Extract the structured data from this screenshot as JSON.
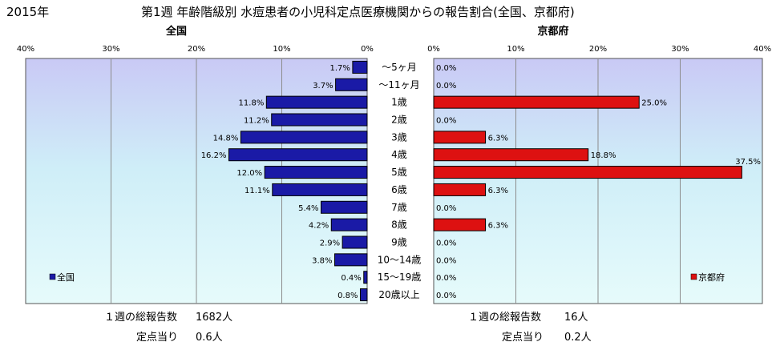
{
  "header": {
    "year": "2015年",
    "title": "第1週 年齢階級別 水痘患者の小児科定点医療機関からの報告割合(全国、京都府)"
  },
  "chart_data": [
    {
      "type": "bar",
      "orientation": "horizontal",
      "direction": "right-to-left",
      "title": "全国",
      "legend": "全国",
      "legend_position": "bottom-left",
      "color": "#1a1aa6",
      "xlim": [
        0,
        40
      ],
      "ticks": [
        "40%",
        "30%",
        "20%",
        "10%",
        "0%"
      ],
      "values": [
        1.7,
        3.7,
        11.8,
        11.2,
        14.8,
        16.2,
        12.0,
        11.1,
        5.4,
        4.2,
        2.9,
        3.8,
        0.4,
        0.8
      ],
      "labels": [
        "1.7%",
        "3.7%",
        "11.8%",
        "11.2%",
        "14.8%",
        "16.2%",
        "12.0%",
        "11.1%",
        "5.4%",
        "4.2%",
        "2.9%",
        "3.8%",
        "0.4%",
        "0.8%"
      ],
      "grid": true
    },
    {
      "type": "bar",
      "orientation": "horizontal",
      "direction": "left-to-right",
      "title": "京都府",
      "legend": "京都府",
      "legend_position": "bottom-right",
      "color": "#dd1111",
      "xlim": [
        0,
        40
      ],
      "ticks": [
        "0%",
        "10%",
        "20%",
        "30%",
        "40%"
      ],
      "values": [
        0.0,
        0.0,
        25.0,
        0.0,
        6.3,
        18.8,
        37.5,
        6.3,
        0.0,
        6.3,
        0.0,
        0.0,
        0.0,
        0.0
      ],
      "labels": [
        "0.0%",
        "0.0%",
        "25.0%",
        "0.0%",
        "6.3%",
        "18.8%",
        "37.5%",
        "6.3%",
        "0.0%",
        "6.3%",
        "0.0%",
        "0.0%",
        "0.0%",
        "0.0%"
      ],
      "grid": true
    }
  ],
  "categories": [
    "～5ヶ月",
    "～11ヶ月",
    "1歳",
    "2歳",
    "3歳",
    "4歳",
    "5歳",
    "6歳",
    "7歳",
    "8歳",
    "9歳",
    "10～14歳",
    "15～19歳",
    "20歳以上"
  ],
  "footer": {
    "national": {
      "total_label": "１週の総報告数",
      "total_value": "1682人",
      "per_label": "定点当り",
      "per_value": "0.6人"
    },
    "kyoto": {
      "total_label": "１週の総報告数",
      "total_value": "16人",
      "per_label": "定点当り",
      "per_value": "0.2人"
    }
  }
}
